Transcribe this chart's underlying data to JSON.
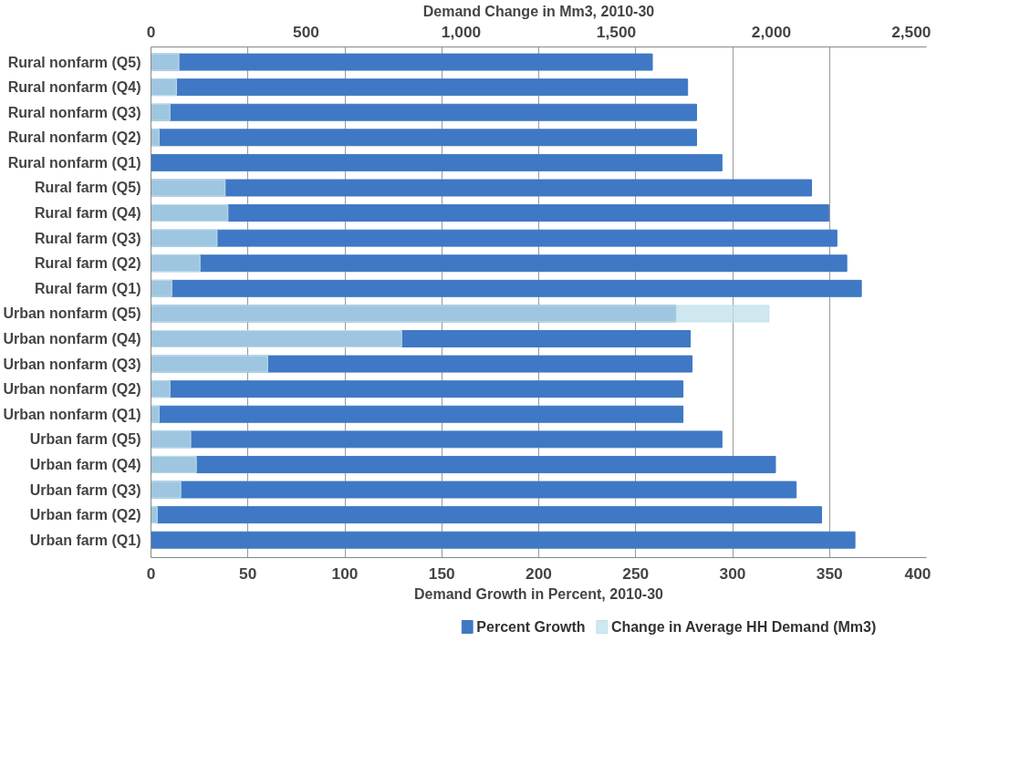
{
  "chart_data": {
    "type": "bar",
    "orientation": "horizontal",
    "xlabel": "Demand Growth in Percent, 2010-30",
    "x2label": "Demand Change in Mm3, 2010-30",
    "categories": [
      "Rural nonfarm (Q5)",
      "Rural nonfarm (Q4)",
      "Rural nonfarm (Q3)",
      "Rural nonfarm (Q2)",
      "Rural nonfarm (Q1)",
      "Rural farm (Q5)",
      "Rural farm (Q4)",
      "Rural farm (Q3)",
      "Rural farm (Q2)",
      "Rural farm (Q1)",
      "Urban nonfarm (Q5)",
      "Urban nonfarm (Q4)",
      "Urban nonfarm (Q3)",
      "Urban nonfarm (Q2)",
      "Urban nonfarm (Q1)",
      "Urban farm (Q5)",
      "Urban farm (Q4)",
      "Urban farm (Q3)",
      "Urban farm (Q2)",
      "Urban farm (Q1)"
    ],
    "series": [
      {
        "name": "Percent Growth",
        "color": "#3f78c4",
        "values": [
          258.6,
          276.8,
          281.4,
          281.4,
          294.5,
          340.7,
          349.6,
          353.8,
          358.9,
          366.4,
          270.7,
          278.2,
          279.1,
          274.4,
          274.4,
          294.5,
          322.1,
          332.8,
          345.9,
          363.1
        ]
      },
      {
        "name": "Change in Average HH Demand (Mm3)",
        "color": "#bfe0ea",
        "axis": "x2",
        "values": [
          90,
          82,
          61,
          26,
          0,
          239,
          248,
          213,
          158,
          67,
          1992,
          808,
          376,
          61,
          26,
          128,
          146,
          96,
          20,
          0
        ]
      }
    ],
    "xlim": [
      0,
      400
    ],
    "xticks": [
      0,
      50,
      100,
      150,
      200,
      250,
      300,
      350,
      400
    ],
    "x2lim": [
      0,
      2500
    ],
    "x2ticks": [
      0,
      500,
      {
        "value": 1000,
        "label": "1,000"
      },
      {
        "value": 1500,
        "label": "1,500"
      },
      {
        "value": 2000,
        "label": "2,000"
      },
      {
        "value": 2500,
        "label": "2,500"
      }
    ],
    "grid": "x",
    "legend": "bottom"
  }
}
